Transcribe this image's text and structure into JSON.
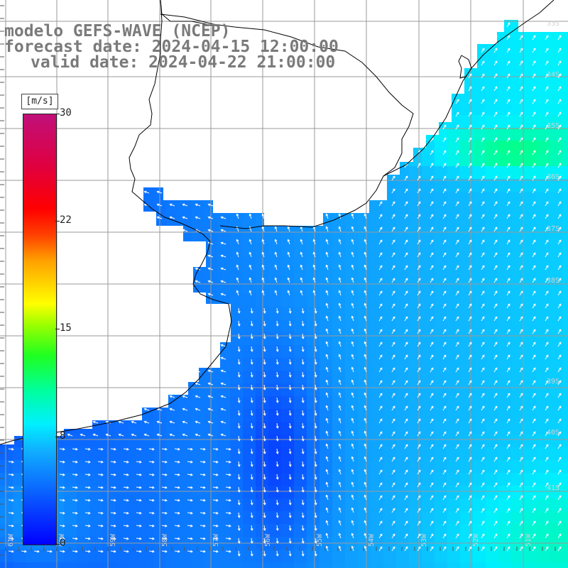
{
  "title": {
    "line1": "modelo GEFS-WAVE (NCEP)",
    "line2": "forecast date: 2024-04-15 12:00:00",
    "line3": "valid date: 2024-04-22 21:00:00"
  },
  "colorbar": {
    "unit": "[m/s]",
    "ticks": [
      "30",
      "22",
      "15",
      "8",
      "0"
    ],
    "range": [
      0,
      30
    ]
  },
  "map": {
    "lon_labels": [
      "61W",
      "60W",
      "59W",
      "58W",
      "57W",
      "56W",
      "55W",
      "54W",
      "53W",
      "52W",
      "51W"
    ],
    "lat_labels": [
      "33S",
      "34S",
      "35S",
      "36S",
      "37S",
      "38S",
      "39S",
      "40S",
      "41S"
    ],
    "land_color": "#ffffff",
    "grid_color": "#9a9a9a",
    "coast_color": "#000000",
    "arrow_color": "#ffffff",
    "wind_scale_colors": [
      "#0000ff",
      "#0a60ff",
      "#10b0ff",
      "#00f0ff",
      "#00ff9a",
      "#20ff20",
      "#9aff00",
      "#ffff00",
      "#ffa000",
      "#ff4000",
      "#ff0000",
      "#c0107a"
    ]
  }
}
